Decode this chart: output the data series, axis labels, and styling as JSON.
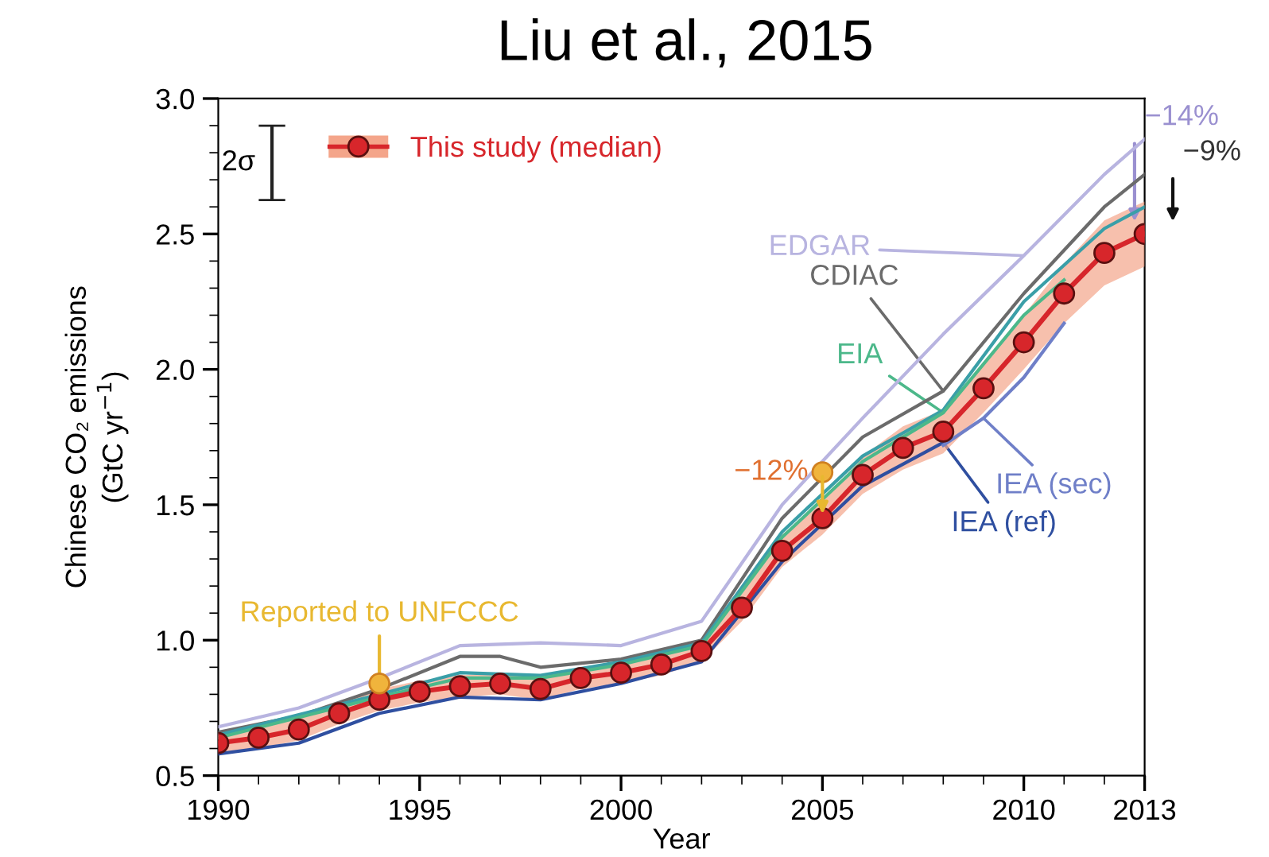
{
  "chart_data": {
    "type": "line",
    "title": "Liu et al., 2015",
    "xlabel": "Year",
    "ylabel": "Chinese CO₂ emissions\n(GtC yr$^{−1}$)",
    "xlim": [
      1990,
      2013
    ],
    "xticks": [
      1990,
      1995,
      2000,
      2005,
      2010,
      2013
    ],
    "ylim": [
      0.5,
      3.0
    ],
    "yticks": [
      {
        "value": 0.5,
        "label": "0.5"
      },
      {
        "value": 1.0,
        "label": "1.0"
      },
      {
        "value": 1.5,
        "label": "1.5"
      },
      {
        "value": 2.0,
        "label": "2.0"
      },
      {
        "value": 2.5,
        "label": "2.5"
      },
      {
        "value": 3.0,
        "label": "3.0"
      }
    ],
    "grid": false,
    "legend": "top left",
    "line_style": "solid",
    "series": [
      {
        "name": "EDGAR",
        "color": "#b8b4e0",
        "x": [
          1990,
          1992,
          1994,
          1996,
          1998,
          2000,
          2002,
          2004,
          2006,
          2008,
          2010,
          2012,
          2013
        ],
        "values": [
          0.68,
          0.75,
          0.86,
          0.98,
          0.99,
          0.98,
          1.07,
          1.5,
          1.82,
          2.13,
          2.42,
          2.72,
          2.85
        ],
        "marker": "none"
      },
      {
        "name": "CDIAC",
        "color": "#6b6b6b",
        "x": [
          1990,
          1992,
          1994,
          1996,
          1997,
          1998,
          2000,
          2002,
          2004,
          2006,
          2008,
          2010,
          2012,
          2013
        ],
        "values": [
          0.66,
          0.72,
          0.82,
          0.94,
          0.94,
          0.9,
          0.93,
          1.0,
          1.45,
          1.75,
          1.92,
          2.28,
          2.6,
          2.72
        ],
        "marker": "none"
      },
      {
        "color": "#3a9fa8",
        "x": [
          1990,
          1994,
          1996,
          1998,
          2000,
          2002,
          2004,
          2006,
          2008,
          2010,
          2012,
          2013
        ],
        "values": [
          0.65,
          0.8,
          0.88,
          0.87,
          0.92,
          0.99,
          1.4,
          1.68,
          1.85,
          2.25,
          2.52,
          2.6
        ],
        "marker": "none"
      },
      {
        "name": "EIA",
        "color": "#4cb88a",
        "x": [
          1990,
          1994,
          1996,
          1998,
          2000,
          2002,
          2004,
          2006,
          2008,
          2009,
          2010,
          2011
        ],
        "values": [
          0.64,
          0.79,
          0.86,
          0.86,
          0.91,
          0.98,
          1.38,
          1.66,
          1.84,
          2.02,
          2.2,
          2.33
        ],
        "marker": "none"
      },
      {
        "name": "IEA (ref)",
        "color": "#2f4fa0",
        "x": [
          1990,
          1992,
          1994,
          1996,
          1998,
          2000,
          2002,
          2004,
          2006,
          2008
        ],
        "values": [
          0.58,
          0.62,
          0.73,
          0.79,
          0.78,
          0.84,
          0.92,
          1.29,
          1.57,
          1.73
        ],
        "marker": "none"
      },
      {
        "name": "IEA (sec)",
        "color": "#6f7fc8",
        "x": [
          2008,
          2009,
          2010,
          2011
        ],
        "values": [
          1.72,
          1.82,
          1.97,
          2.17
        ],
        "marker": "none"
      },
      {
        "name": "This study (median)",
        "color": "#d7262b",
        "marker": "circle",
        "x": [
          1990,
          1991,
          1992,
          1993,
          1994,
          1995,
          1996,
          1997,
          1998,
          1999,
          2000,
          2001,
          2002,
          2003,
          2004,
          2005,
          2006,
          2007,
          2008,
          2009,
          2010,
          2011,
          2012,
          2013
        ],
        "values": [
          0.62,
          0.64,
          0.67,
          0.73,
          0.78,
          0.81,
          0.83,
          0.84,
          0.82,
          0.86,
          0.88,
          0.91,
          0.96,
          1.12,
          1.33,
          1.45,
          1.61,
          1.71,
          1.77,
          1.93,
          2.1,
          2.28,
          2.43,
          2.5
        ],
        "lower": [
          0.58,
          0.6,
          0.63,
          0.69,
          0.74,
          0.77,
          0.79,
          0.8,
          0.78,
          0.82,
          0.84,
          0.87,
          0.92,
          1.07,
          1.27,
          1.39,
          1.54,
          1.63,
          1.69,
          1.84,
          2.0,
          2.17,
          2.31,
          2.38
        ],
        "upper": [
          0.66,
          0.68,
          0.71,
          0.77,
          0.82,
          0.85,
          0.87,
          0.88,
          0.86,
          0.9,
          0.92,
          0.95,
          1.0,
          1.17,
          1.39,
          1.51,
          1.68,
          1.79,
          1.85,
          2.02,
          2.2,
          2.39,
          2.55,
          2.62
        ]
      },
      {
        "color": "#f0b43c",
        "type": "scatter",
        "marker": "circle",
        "x": [
          1994,
          2005
        ],
        "values": [
          0.84,
          1.62
        ]
      }
    ],
    "annotations": [
      "2σ",
      {
        "text": "Reported to UNFCCC",
        "x": 1994,
        "y": 0.84
      },
      {
        "text": "−12%",
        "x": 2005,
        "y": 1.62
      },
      {
        "text": "−14%",
        "x": 2013,
        "y": 2.85
      },
      {
        "text": "−9%",
        "x": 2013,
        "y": 2.72
      }
    ]
  }
}
